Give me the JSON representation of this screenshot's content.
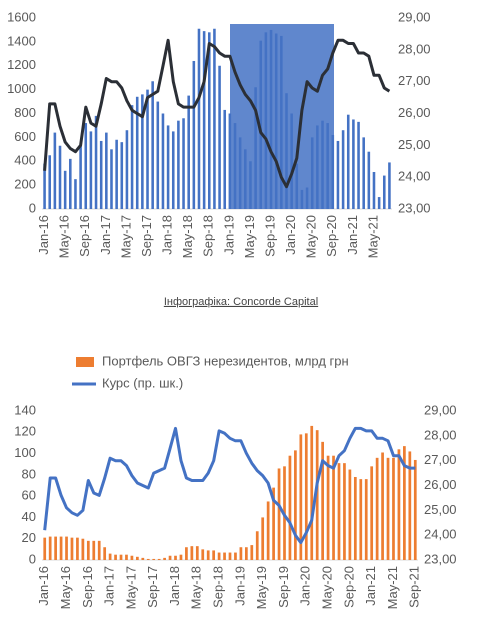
{
  "caption": "Інфографіка: Concorde Capital",
  "chart_data": [
    {
      "type": "bar",
      "categories": [
        "Jan-16",
        null,
        null,
        null,
        "May-16",
        null,
        null,
        null,
        "Sep-16",
        null,
        null,
        null,
        "Jan-17",
        null,
        null,
        null,
        "May-17",
        null,
        null,
        null,
        "Sep-17",
        null,
        null,
        null,
        "Jan-18",
        null,
        null,
        null,
        "May-18",
        null,
        null,
        null,
        "Sep-18",
        null,
        null,
        null,
        "Jan-19",
        null,
        null,
        null,
        "May-19",
        null,
        null,
        null,
        "Sep-19",
        null,
        null,
        null,
        "Jan-20",
        null,
        null,
        null,
        "May-20",
        null,
        null,
        null,
        "Sep-20",
        null,
        null,
        null,
        "Jan-21",
        null,
        null,
        null,
        "May-21",
        null,
        null,
        null
      ],
      "series": [
        {
          "color": "#4472c4",
          "values": [
            380,
            450,
            640,
            530,
            320,
            420,
            250,
            530,
            720,
            650,
            780,
            570,
            640,
            500,
            580,
            560,
            660,
            870,
            940,
            960,
            1000,
            1070,
            900,
            800,
            700,
            650,
            740,
            760,
            950,
            1240,
            1510,
            1490,
            1480,
            1510,
            1200,
            830,
            800,
            720,
            600,
            500,
            400,
            1020,
            1410,
            1480,
            1500,
            1470,
            1450,
            970,
            800,
            380,
            160,
            180,
            600,
            700,
            740,
            720,
            620,
            570,
            660,
            790,
            750,
            730,
            600,
            480,
            310,
            100,
            280,
            390
          ]
        },
        {
          "color": "#2b2f36",
          "axis": "y2",
          "values": [
            24.2,
            26.3,
            26.3,
            25.6,
            25.1,
            24.9,
            24.8,
            25.0,
            26.2,
            25.7,
            25.6,
            26.3,
            27.1,
            27.0,
            27.0,
            26.8,
            26.4,
            26.1,
            26.0,
            25.9,
            26.5,
            26.6,
            26.7,
            27.5,
            28.3,
            27.0,
            26.3,
            26.2,
            26.2,
            26.2,
            26.5,
            27.0,
            28.2,
            28.1,
            27.9,
            27.8,
            27.8,
            27.3,
            26.9,
            26.6,
            26.4,
            26.1,
            25.4,
            25.2,
            24.8,
            24.5,
            24.0,
            23.7,
            24.1,
            24.6,
            26.1,
            27.0,
            26.8,
            26.7,
            27.2,
            27.4,
            27.9,
            28.3,
            28.3,
            28.2,
            28.2,
            27.9,
            27.9,
            27.8,
            27.2,
            27.2,
            26.8,
            26.7
          ]
        }
      ],
      "ylim": [
        0,
        1600
      ],
      "yticks": [
        0,
        200,
        400,
        600,
        800,
        1000,
        1200,
        1400,
        1600
      ],
      "y2lim": [
        23,
        29
      ],
      "y2ticks": [
        {
          "value": 23,
          "label": "23,00"
        },
        {
          "value": 24,
          "label": "24,00"
        },
        {
          "value": 25,
          "label": "25,00"
        },
        {
          "value": 26,
          "label": "26,00"
        },
        {
          "value": 27,
          "label": "27,00"
        },
        {
          "value": 28,
          "label": "28,00"
        },
        {
          "value": 29,
          "label": "29,00"
        }
      ]
    },
    {
      "type": "bar",
      "categories": [
        "Jan-16",
        null,
        null,
        null,
        "May-16",
        null,
        null,
        null,
        "Sep-16",
        null,
        null,
        null,
        "Jan-17",
        null,
        null,
        null,
        "May-17",
        null,
        null,
        null,
        "Sep-17",
        null,
        null,
        null,
        "Jan-18",
        null,
        null,
        null,
        "May-18",
        null,
        null,
        null,
        "Sep-18",
        null,
        null,
        null,
        "Jan-19",
        null,
        null,
        null,
        "May-19",
        null,
        null,
        null,
        "Sep-19",
        null,
        null,
        null,
        "Jan-20",
        null,
        null,
        null,
        "May-20",
        null,
        null,
        null,
        "Sep-20",
        null,
        null,
        null,
        "Jan-21",
        null,
        null,
        null,
        "May-21",
        null,
        null,
        null,
        "Sep-21"
      ],
      "series": [
        {
          "name": "Портфель ОВГЗ нерезидентов, млрд грн",
          "color": "#ed7d31",
          "values": [
            21,
            22,
            22,
            22,
            22,
            21,
            21,
            20,
            18,
            18,
            18,
            12,
            6,
            5,
            5,
            5,
            4,
            3,
            2,
            1,
            1,
            1,
            2,
            4,
            4,
            5,
            12,
            13,
            13,
            10,
            9,
            9,
            7,
            7,
            7,
            7,
            12,
            12,
            14,
            27,
            40,
            55,
            68,
            86,
            88,
            98,
            103,
            118,
            119,
            126,
            122,
            111,
            98,
            98,
            91,
            91,
            85,
            78,
            76,
            76,
            88,
            96,
            101,
            96,
            96,
            104,
            107,
            102,
            94
          ]
        },
        {
          "name": "Курс (пр. шк.)",
          "color": "#4472c4",
          "axis": "y2",
          "values": [
            24.2,
            26.3,
            26.3,
            25.6,
            25.1,
            24.9,
            24.8,
            25.0,
            26.2,
            25.7,
            25.6,
            26.3,
            27.1,
            27.0,
            27.0,
            26.8,
            26.4,
            26.1,
            26.0,
            25.9,
            26.5,
            26.6,
            26.7,
            27.5,
            28.3,
            27.0,
            26.3,
            26.2,
            26.2,
            26.2,
            26.5,
            27.0,
            28.2,
            28.1,
            27.9,
            27.8,
            27.8,
            27.3,
            26.9,
            26.6,
            26.4,
            26.1,
            25.4,
            25.2,
            24.8,
            24.5,
            24.0,
            23.7,
            24.1,
            24.6,
            26.1,
            27.0,
            26.8,
            26.7,
            27.2,
            27.4,
            27.9,
            28.3,
            28.3,
            28.2,
            28.2,
            27.9,
            27.9,
            27.8,
            27.2,
            27.2,
            26.8,
            26.7,
            26.7
          ]
        }
      ],
      "legend": "top",
      "ylim": [
        0,
        140
      ],
      "yticks": [
        0,
        20,
        40,
        60,
        80,
        100,
        120,
        140
      ],
      "y2lim": [
        23,
        29
      ],
      "y2ticks": [
        {
          "value": 23,
          "label": "23,00"
        },
        {
          "value": 24,
          "label": "24,00"
        },
        {
          "value": 25,
          "label": "25,00"
        },
        {
          "value": 26,
          "label": "26,00"
        },
        {
          "value": 27,
          "label": "27,00"
        },
        {
          "value": 28,
          "label": "28,00"
        },
        {
          "value": 29,
          "label": "29,00"
        }
      ]
    }
  ]
}
